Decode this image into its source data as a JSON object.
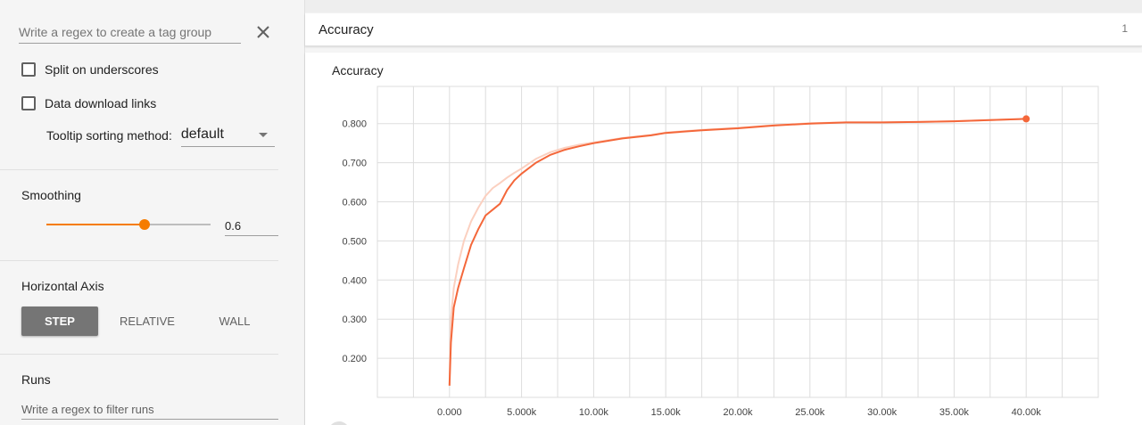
{
  "sidebar": {
    "tag_regex_placeholder": "Write a regex to create a tag group",
    "split_on_underscores_label": "Split on underscores",
    "split_on_underscores_checked": false,
    "data_download_links_label": "Data download links",
    "data_download_links_checked": false,
    "tooltip_sorting_label": "Tooltip sorting method:",
    "tooltip_sorting_value": "default",
    "smoothing_title": "Smoothing",
    "smoothing_value": "0.6",
    "smoothing_fraction": 0.6,
    "horizontal_axis_title": "Horizontal Axis",
    "axis_options": [
      "STEP",
      "RELATIVE",
      "WALL"
    ],
    "axis_selected": "STEP",
    "runs_title": "Runs",
    "runs_filter_placeholder": "Write a regex to filter runs"
  },
  "header": {
    "title": "Accuracy",
    "count": "1"
  },
  "colors": {
    "accent": "#f57c00",
    "series": "#f4673a",
    "series_raw": "#fbd0c0",
    "grid": "#dddddd"
  },
  "chart_data": {
    "type": "line",
    "title": "Accuracy",
    "xlabel": "",
    "ylabel": "",
    "xlim": [
      -5000,
      45000
    ],
    "ylim": [
      0.1,
      0.895
    ],
    "grid": true,
    "x_ticks": [
      0,
      5000,
      10000,
      15000,
      20000,
      25000,
      30000,
      35000,
      40000
    ],
    "x_tick_labels": [
      "0.000",
      "5.000k",
      "10.00k",
      "15.00k",
      "20.00k",
      "25.00k",
      "30.00k",
      "35.00k",
      "40.00k"
    ],
    "y_ticks": [
      0.2,
      0.3,
      0.4,
      0.5,
      0.6,
      0.7,
      0.8
    ],
    "y_tick_labels": [
      "0.200",
      "0.300",
      "0.400",
      "0.500",
      "0.600",
      "0.700",
      "0.800"
    ],
    "series": [
      {
        "smoothed": true,
        "x": [
          0,
          100,
          300,
          600,
          1000,
          1500,
          2000,
          2500,
          3000,
          3500,
          4000,
          4500,
          5000,
          6000,
          7000,
          8000,
          9000,
          10000,
          12000,
          14000,
          15000,
          17500,
          20000,
          22500,
          25000,
          27500,
          30000,
          32500,
          35000,
          37500,
          40000
        ],
        "y": [
          0.13,
          0.24,
          0.33,
          0.38,
          0.43,
          0.49,
          0.53,
          0.565,
          0.58,
          0.595,
          0.63,
          0.655,
          0.672,
          0.7,
          0.72,
          0.733,
          0.742,
          0.75,
          0.762,
          0.77,
          0.776,
          0.783,
          0.788,
          0.795,
          0.8,
          0.803,
          0.803,
          0.804,
          0.806,
          0.809,
          0.812
        ]
      },
      {
        "smoothed": false,
        "x": [
          0,
          100,
          300,
          600,
          1000,
          1500,
          2000,
          2500,
          3000,
          3500,
          4000,
          4500,
          5000,
          6000,
          7000,
          8000,
          9000,
          10000,
          12000,
          14000,
          15000,
          17500,
          20000,
          22500,
          25000,
          27500,
          30000,
          32500,
          35000,
          37500,
          40000
        ],
        "y": [
          0.13,
          0.3,
          0.38,
          0.44,
          0.5,
          0.55,
          0.585,
          0.615,
          0.635,
          0.648,
          0.662,
          0.674,
          0.685,
          0.71,
          0.727,
          0.738,
          0.746,
          0.752,
          0.763,
          0.771,
          0.777,
          0.784,
          0.789,
          0.796,
          0.801,
          0.803,
          0.803,
          0.804,
          0.806,
          0.809,
          0.812
        ]
      }
    ]
  }
}
